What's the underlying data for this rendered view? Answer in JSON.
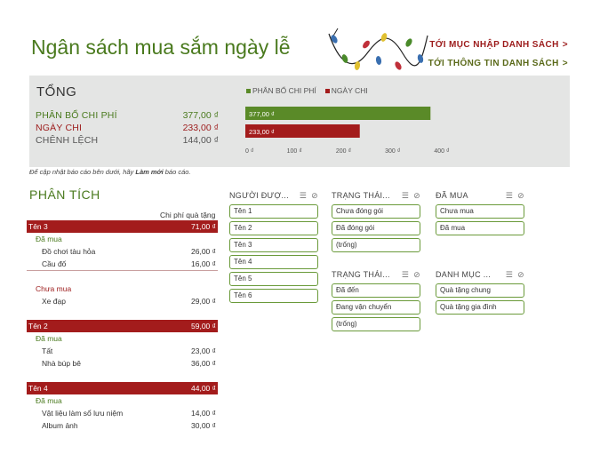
{
  "header": {
    "title": "Ngân sách mua sắm ngày lễ",
    "nav_entry": "TỚI MỤC NHẬP DANH SÁCH",
    "nav_info": "TỚI THÔNG TIN DANH SÁCH",
    "arrow": ">"
  },
  "summary": {
    "title": "TỔNG",
    "rows": [
      {
        "label": "PHÂN BỔ CHI PHÍ",
        "value": "377,00 ₫"
      },
      {
        "label": "NGÀY CHI",
        "value": "233,00 ₫"
      },
      {
        "label": "CHÊNH LỆCH",
        "value": "144,00 ₫"
      }
    ]
  },
  "chart_data": {
    "type": "bar",
    "orientation": "horizontal",
    "series": [
      {
        "name": "PHÂN BỔ CHI PHÍ",
        "value": 377,
        "label": "377,00 ₫",
        "color": "#5a8a28"
      },
      {
        "name": "NGÀY CHI",
        "value": 233,
        "label": "233,00 ₫",
        "color": "#a31c1c"
      }
    ],
    "xlim": [
      0,
      400
    ],
    "ticks": [
      {
        "value": 0,
        "label": "0 ₫"
      },
      {
        "value": 100,
        "label": "100 ₫"
      },
      {
        "value": 200,
        "label": "200 ₫"
      },
      {
        "value": 300,
        "label": "300 ₫"
      },
      {
        "value": 400,
        "label": "400 ₫"
      }
    ],
    "legend": "top-left",
    "grid": false
  },
  "note": {
    "before": "Để cập nhật báo cáo bên dưới, hãy ",
    "bold": "Làm mới",
    "after": " báo cáo."
  },
  "pivot": {
    "title": "PHÂN TÍCH",
    "column_header": "Chi phí quà tặng",
    "groups": [
      {
        "name": "Tên 3",
        "total": "71,00 ₫",
        "subs": [
          {
            "label": "Đã mua",
            "red": false,
            "items": [
              {
                "name": "Đồ chơi tàu hỏa",
                "value": "26,00 ₫"
              },
              {
                "name": "Cầu đố",
                "value": "16,00 ₫"
              }
            ]
          },
          {
            "label": "Chưa mua",
            "red": true,
            "items": [
              {
                "name": "Xe đạp",
                "value": "29,00 ₫"
              }
            ]
          }
        ]
      },
      {
        "name": "Tên 2",
        "total": "59,00 ₫",
        "subs": [
          {
            "label": "Đã mua",
            "red": false,
            "items": [
              {
                "name": "Tất",
                "value": "23,00 ₫"
              },
              {
                "name": "Nhà búp bê",
                "value": "36,00 ₫"
              }
            ]
          }
        ]
      },
      {
        "name": "Tên 4",
        "total": "44,00 ₫",
        "subs": [
          {
            "label": "Đã mua",
            "red": false,
            "items": [
              {
                "name": "Vật liệu làm sổ lưu niệm",
                "value": "14,00 ₫"
              },
              {
                "name": "Album ảnh",
                "value": "30,00 ₫"
              }
            ]
          }
        ]
      }
    ]
  },
  "slicers": [
    {
      "key": "recipient",
      "title": "NGƯỜI ĐƯỢ...",
      "items": [
        "Tên 1",
        "Tên 2",
        "Tên 3",
        "Tên 4",
        "Tên 5",
        "Tên 6"
      ]
    },
    {
      "key": "status1",
      "title": "TRẠNG THÁI...",
      "items": [
        "Chưa đóng gói",
        "Đã đóng gói",
        "(trống)"
      ]
    },
    {
      "key": "status2",
      "title": "TRẠNG THÁI...",
      "items": [
        "Đã đến",
        "Đang vận chuyển",
        "(trống)"
      ]
    },
    {
      "key": "purchased",
      "title": "ĐÃ MUA",
      "items": [
        "Chưa mua",
        "Đã mua"
      ]
    },
    {
      "key": "category",
      "title": "DANH MỤC ...",
      "items": [
        "Quà tặng chung",
        "Quà tặng gia đình"
      ]
    }
  ],
  "icons": {
    "multiselect": "☰",
    "clear_filter": "⊘"
  }
}
